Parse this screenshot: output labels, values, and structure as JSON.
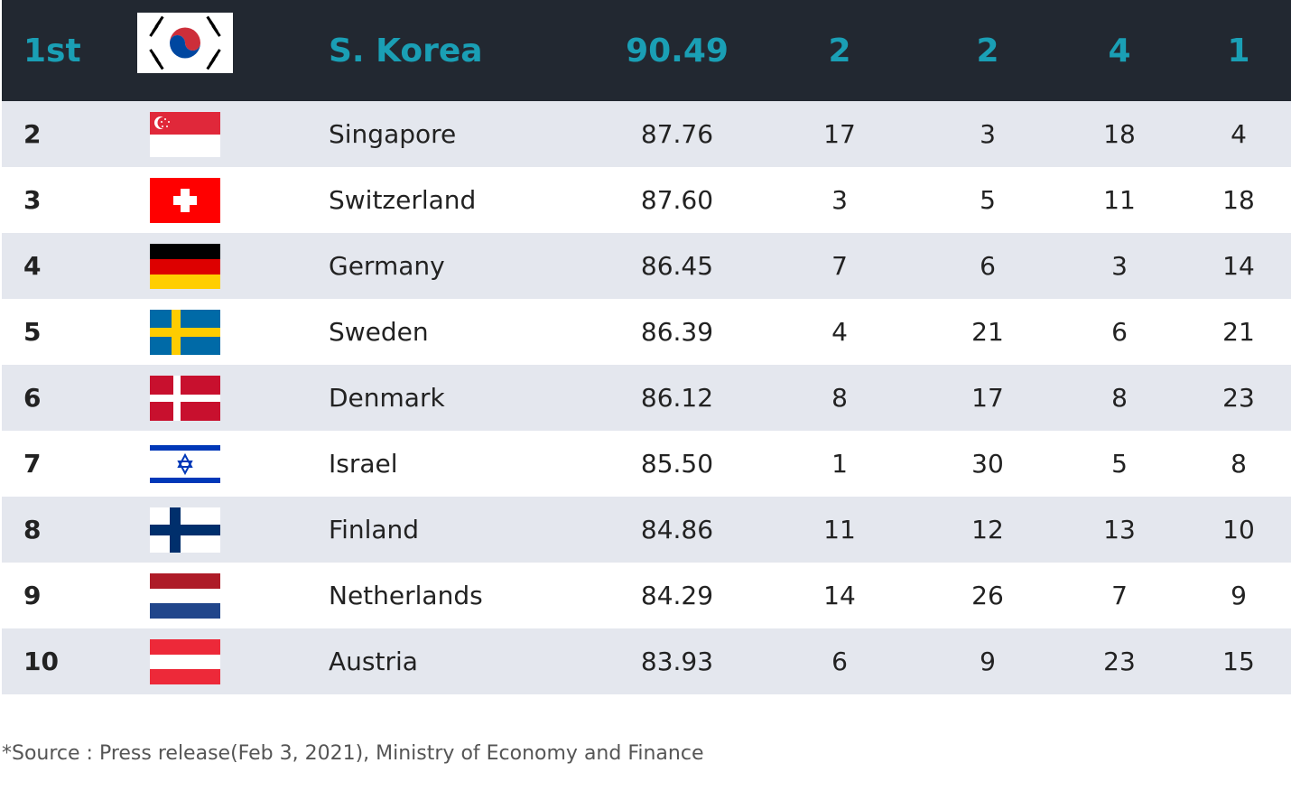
{
  "table": {
    "header": [
      "1st",
      "S. Korea",
      "90.49",
      "2",
      "2",
      "4",
      "1"
    ],
    "rows": [
      [
        "2",
        "Singapore",
        "87.76",
        "17",
        "3",
        "18",
        "4"
      ],
      [
        "3",
        "Switzerland",
        "87.60",
        "3",
        "5",
        "11",
        "18"
      ],
      [
        "4",
        "Germany",
        "86.45",
        "7",
        "6",
        "3",
        "14"
      ],
      [
        "5",
        "Sweden",
        "86.39",
        "4",
        "21",
        "6",
        "21"
      ],
      [
        "6",
        "Denmark",
        "86.12",
        "8",
        "17",
        "8",
        "23"
      ],
      [
        "7",
        "Israel",
        "85.50",
        "1",
        "30",
        "5",
        "8"
      ],
      [
        "8",
        "Finland",
        "84.86",
        "11",
        "12",
        "13",
        "10"
      ],
      [
        "9",
        "Netherlands",
        "84.29",
        "14",
        "26",
        "7",
        "9"
      ],
      [
        "10",
        "Austria",
        "83.93",
        "6",
        "9",
        "23",
        "15"
      ]
    ]
  },
  "footnote": "*Source : Press release(Feb 3, 2021), Ministry of Economy and Finance"
}
